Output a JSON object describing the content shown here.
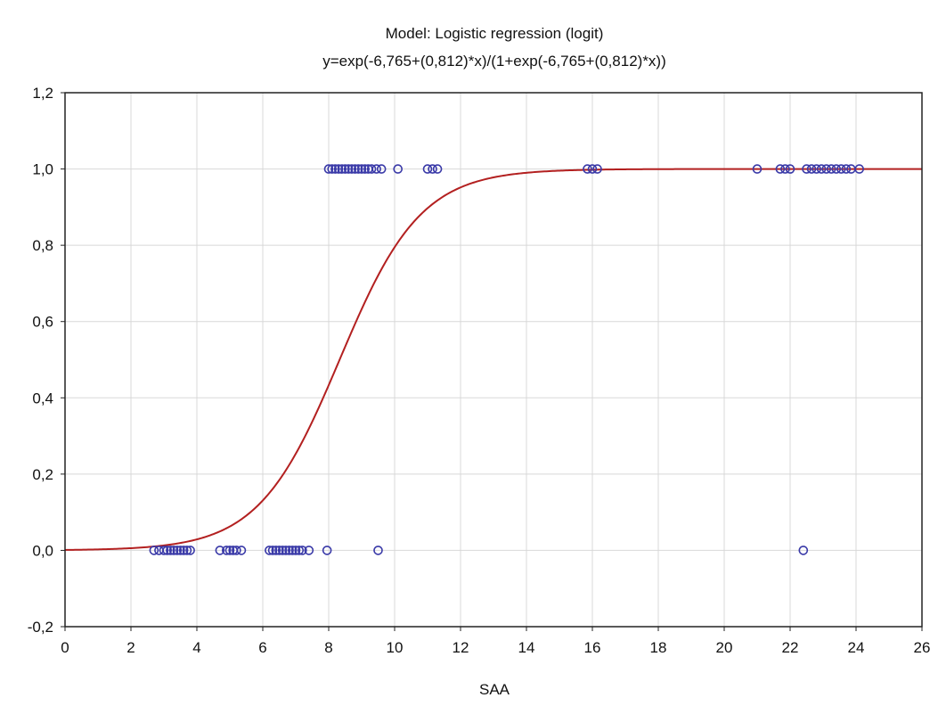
{
  "chart_data": {
    "type": "scatter",
    "title": "Model: Logistic regression (logit)",
    "subtitle": "y=exp(-6,765+(0,812)*x)/(1+exp(-6,765+(0,812)*x))",
    "xlabel": "SAA",
    "ylabel": "",
    "xlim": [
      0,
      26
    ],
    "ylim": [
      -0.2,
      1.2
    ],
    "xticks": [
      0,
      2,
      4,
      6,
      8,
      10,
      12,
      14,
      16,
      18,
      20,
      22,
      24,
      26
    ],
    "xtick_labels": [
      "0",
      "2",
      "4",
      "6",
      "8",
      "10",
      "12",
      "14",
      "16",
      "18",
      "20",
      "22",
      "24",
      "26"
    ],
    "yticks": [
      -0.2,
      0.0,
      0.2,
      0.4,
      0.6,
      0.8,
      1.0,
      1.2
    ],
    "ytick_labels": [
      "-0,2",
      "0,0",
      "0,2",
      "0,4",
      "0,6",
      "0,8",
      "1,0",
      "1,2"
    ],
    "grid": true,
    "legend": "none",
    "series": [
      {
        "kind": "points",
        "color": "#3a3aa8",
        "points": [
          [
            2.7,
            0
          ],
          [
            2.85,
            0
          ],
          [
            3.0,
            0
          ],
          [
            3.1,
            0
          ],
          [
            3.2,
            0
          ],
          [
            3.3,
            0
          ],
          [
            3.4,
            0
          ],
          [
            3.5,
            0
          ],
          [
            3.6,
            0
          ],
          [
            3.7,
            0
          ],
          [
            3.8,
            0
          ],
          [
            4.7,
            0
          ],
          [
            4.9,
            0
          ],
          [
            5.0,
            0
          ],
          [
            5.1,
            0
          ],
          [
            5.2,
            0
          ],
          [
            5.35,
            0
          ],
          [
            6.2,
            0
          ],
          [
            6.3,
            0
          ],
          [
            6.4,
            0
          ],
          [
            6.5,
            0
          ],
          [
            6.6,
            0
          ],
          [
            6.7,
            0
          ],
          [
            6.8,
            0
          ],
          [
            6.9,
            0
          ],
          [
            7.0,
            0
          ],
          [
            7.1,
            0
          ],
          [
            7.2,
            0
          ],
          [
            7.4,
            0
          ],
          [
            7.95,
            0
          ],
          [
            9.5,
            0
          ],
          [
            22.4,
            0
          ],
          [
            8.0,
            1
          ],
          [
            8.1,
            1
          ],
          [
            8.2,
            1
          ],
          [
            8.3,
            1
          ],
          [
            8.4,
            1
          ],
          [
            8.5,
            1
          ],
          [
            8.6,
            1
          ],
          [
            8.7,
            1
          ],
          [
            8.8,
            1
          ],
          [
            8.9,
            1
          ],
          [
            9.0,
            1
          ],
          [
            9.1,
            1
          ],
          [
            9.2,
            1
          ],
          [
            9.3,
            1
          ],
          [
            9.45,
            1
          ],
          [
            9.6,
            1
          ],
          [
            10.1,
            1
          ],
          [
            11.0,
            1
          ],
          [
            11.15,
            1
          ],
          [
            11.3,
            1
          ],
          [
            15.85,
            1
          ],
          [
            16.0,
            1
          ],
          [
            16.15,
            1
          ],
          [
            21.0,
            1
          ],
          [
            21.7,
            1
          ],
          [
            21.85,
            1
          ],
          [
            22.0,
            1
          ],
          [
            22.5,
            1
          ],
          [
            22.65,
            1
          ],
          [
            22.8,
            1
          ],
          [
            22.95,
            1
          ],
          [
            23.1,
            1
          ],
          [
            23.25,
            1
          ],
          [
            23.4,
            1
          ],
          [
            23.55,
            1
          ],
          [
            23.7,
            1
          ],
          [
            23.85,
            1
          ],
          [
            24.1,
            1
          ]
        ]
      },
      {
        "kind": "curve",
        "color": "#b32020",
        "formula": "exp(-6.765+0.812*x)/(1+exp(-6.765+0.812*x))",
        "intercept": -6.765,
        "slope": 0.812
      }
    ]
  }
}
